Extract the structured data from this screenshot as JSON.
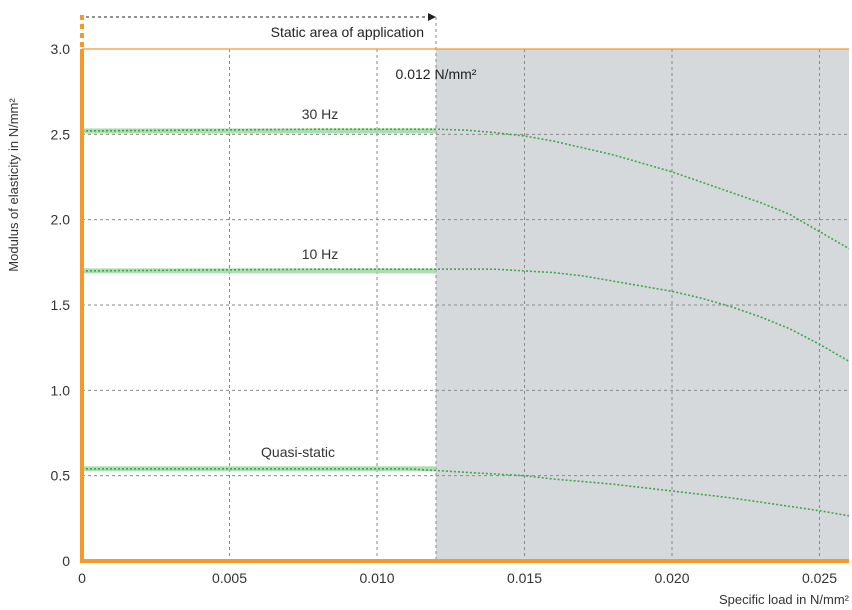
{
  "chart_data": {
    "type": "line",
    "title": "",
    "xlabel": "Specific load in N/mm²",
    "ylabel": "Modulus of elasticity in N/mm²",
    "xlim": [
      0,
      0.026
    ],
    "ylim": [
      0,
      3.0
    ],
    "x_ticks": [
      0,
      0.005,
      0.01,
      0.015,
      0.02,
      0.025
    ],
    "x_tick_labels": [
      "0",
      "0.005",
      "0.010",
      "0.015",
      "0.020",
      "0.025"
    ],
    "y_ticks": [
      0,
      0.5,
      1.0,
      1.5,
      2.0,
      2.5,
      3.0
    ],
    "y_tick_labels": [
      "0",
      "0.5",
      "1.0",
      "1.5",
      "2.0",
      "2.5",
      "3.0"
    ],
    "grid": true,
    "static_area": {
      "x_end": 0.012,
      "label": "Static area of application",
      "boundary_label": "0.012 N/mm²",
      "shade_color": "#d5d9dc"
    },
    "series": [
      {
        "name": "30 Hz",
        "x": [
          0,
          0.004,
          0.008,
          0.012,
          0.013,
          0.014,
          0.015,
          0.016,
          0.017,
          0.018,
          0.019,
          0.02,
          0.021,
          0.022,
          0.023,
          0.024,
          0.025,
          0.026
        ],
        "y": [
          2.52,
          2.525,
          2.53,
          2.53,
          2.525,
          2.51,
          2.49,
          2.46,
          2.42,
          2.38,
          2.33,
          2.28,
          2.22,
          2.16,
          2.1,
          2.03,
          1.93,
          1.83
        ],
        "static_band_end": 0.012
      },
      {
        "name": "10 Hz",
        "x": [
          0,
          0.004,
          0.008,
          0.012,
          0.013,
          0.014,
          0.015,
          0.016,
          0.017,
          0.018,
          0.019,
          0.02,
          0.021,
          0.022,
          0.023,
          0.024,
          0.025,
          0.026
        ],
        "y": [
          1.7,
          1.705,
          1.71,
          1.71,
          1.71,
          1.71,
          1.7,
          1.69,
          1.67,
          1.64,
          1.61,
          1.58,
          1.54,
          1.49,
          1.43,
          1.36,
          1.27,
          1.17
        ],
        "static_band_end": 0.012
      },
      {
        "name": "Quasi-static",
        "x": [
          0,
          0.004,
          0.008,
          0.011,
          0.012,
          0.013,
          0.014,
          0.015,
          0.016,
          0.017,
          0.018,
          0.019,
          0.02,
          0.021,
          0.022,
          0.023,
          0.024,
          0.025,
          0.026
        ],
        "y": [
          0.54,
          0.54,
          0.54,
          0.54,
          0.53,
          0.52,
          0.51,
          0.5,
          0.48,
          0.465,
          0.45,
          0.43,
          0.41,
          0.39,
          0.37,
          0.345,
          0.32,
          0.295,
          0.265
        ],
        "static_band_end": 0.012
      }
    ],
    "colors": {
      "axis": "#f39a2b",
      "grid": "#8a8a8a",
      "line": "#3aa84a",
      "band": "#9fd7a3",
      "text": "#333333"
    }
  }
}
